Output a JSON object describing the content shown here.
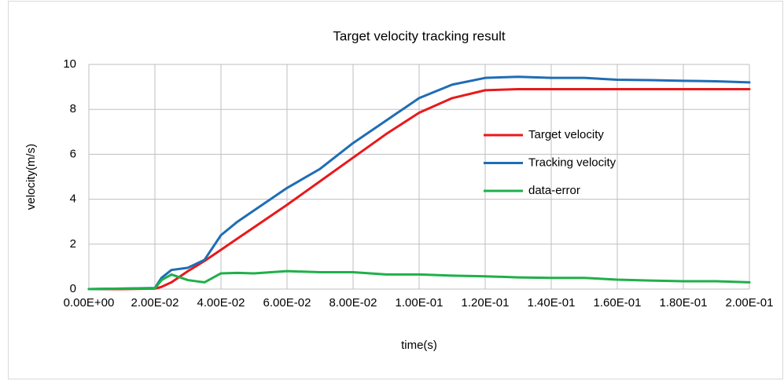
{
  "chart_data": {
    "type": "line",
    "title": "Target velocity tracking result",
    "x_label": "time(s)",
    "y_label": "velocity(m/s)",
    "x": [
      0,
      0.01,
      0.02,
      0.022,
      0.025,
      0.03,
      0.035,
      0.04,
      0.045,
      0.05,
      0.06,
      0.07,
      0.08,
      0.09,
      0.1,
      0.11,
      0.12,
      0.13,
      0.14,
      0.15,
      0.16,
      0.17,
      0.18,
      0.19,
      0.2
    ],
    "series": [
      {
        "name": "Target velocity",
        "color": "#e8191c",
        "values": [
          0,
          0,
          0.02,
          0.1,
          0.3,
          0.8,
          1.25,
          1.75,
          2.25,
          2.75,
          3.75,
          4.8,
          5.85,
          6.9,
          7.85,
          8.5,
          8.85,
          8.9,
          8.9,
          8.9,
          8.9,
          8.9,
          8.9,
          8.9,
          8.9
        ]
      },
      {
        "name": "Tracking velocity",
        "color": "#1f6db5",
        "values": [
          0,
          0.02,
          0.05,
          0.5,
          0.85,
          0.95,
          1.3,
          2.4,
          3.0,
          3.5,
          4.5,
          5.35,
          6.5,
          7.5,
          8.5,
          9.1,
          9.4,
          9.45,
          9.4,
          9.4,
          9.32,
          9.3,
          9.27,
          9.25,
          9.2
        ]
      },
      {
        "name": "data-error",
        "color": "#1fb04a",
        "values": [
          0,
          0.02,
          0.03,
          0.4,
          0.65,
          0.4,
          0.3,
          0.7,
          0.72,
          0.7,
          0.8,
          0.75,
          0.75,
          0.65,
          0.65,
          0.6,
          0.57,
          0.52,
          0.5,
          0.5,
          0.42,
          0.38,
          0.35,
          0.35,
          0.3
        ]
      }
    ],
    "xlim": [
      0,
      0.2
    ],
    "xticks": [
      {
        "value": 0,
        "label": "0.00E+00"
      },
      {
        "value": 0.02,
        "label": "2.00E-02"
      },
      {
        "value": 0.04,
        "label": "4.00E-02"
      },
      {
        "value": 0.06,
        "label": "6.00E-02"
      },
      {
        "value": 0.08,
        "label": "8.00E-02"
      },
      {
        "value": 0.1,
        "label": "1.00E-01"
      },
      {
        "value": 0.12,
        "label": "1.20E-01"
      },
      {
        "value": 0.14,
        "label": "1.40E-01"
      },
      {
        "value": 0.16,
        "label": "1.60E-01"
      },
      {
        "value": 0.18,
        "label": "1.80E-01"
      },
      {
        "value": 0.2,
        "label": "2.00E-01"
      }
    ],
    "ylim": [
      0,
      10
    ],
    "yticks": [
      0,
      2,
      4,
      6,
      8,
      10
    ],
    "grid": true,
    "legend": "right"
  }
}
